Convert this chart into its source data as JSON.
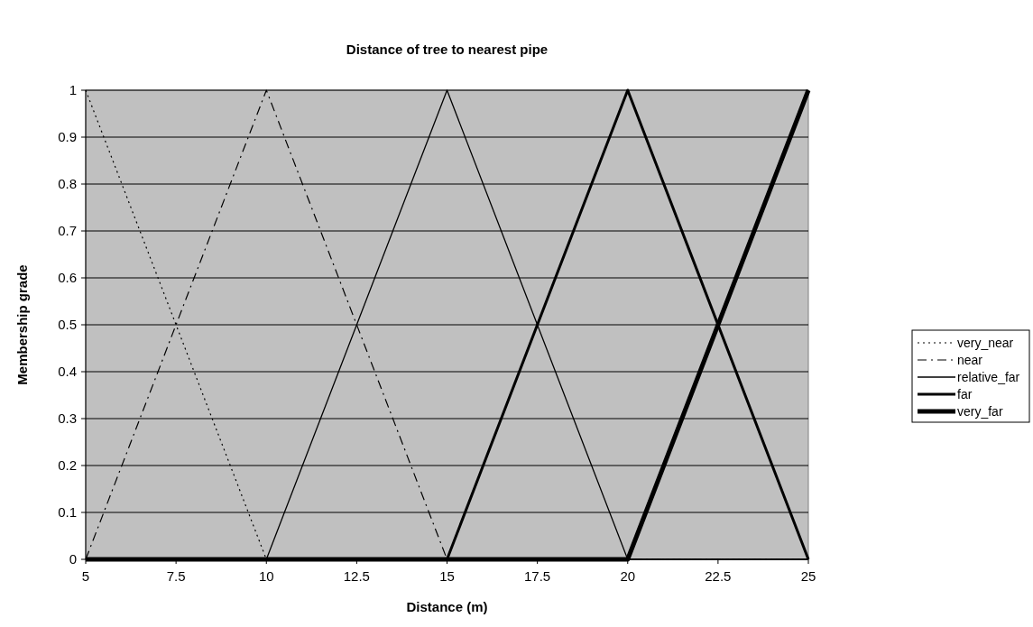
{
  "chart_data": {
    "type": "line",
    "title": "Distance of tree to nearest pipe",
    "xlabel": "Distance (m)",
    "ylabel": "Membership grade",
    "xlim": [
      5,
      25
    ],
    "xticks": [
      5,
      7.5,
      10,
      12.5,
      15,
      17.5,
      20,
      22.5,
      25
    ],
    "ylim": [
      0,
      1
    ],
    "yticks": [
      0,
      0.1,
      0.2,
      0.3,
      0.4,
      0.5,
      0.6,
      0.7,
      0.8,
      0.9,
      1
    ],
    "grid": "y",
    "legend": "right",
    "marker": "none",
    "series": [
      {
        "name": "very_near",
        "color": "#000000",
        "line_style": "dotted",
        "x": [
          5,
          10,
          15,
          20,
          25
        ],
        "values": [
          1,
          0,
          0,
          0,
          0
        ]
      },
      {
        "name": "near",
        "color": "#000000",
        "line_style": "dashdot",
        "x": [
          5,
          10,
          15,
          20,
          25
        ],
        "values": [
          0,
          1,
          0,
          0,
          0
        ]
      },
      {
        "name": "relative_far",
        "color": "#000000",
        "line_style": "solid",
        "x": [
          5,
          10,
          15,
          20,
          25
        ],
        "values": [
          0,
          0,
          1,
          0,
          0
        ]
      },
      {
        "name": "far",
        "color": "#000000",
        "line_style": "solid",
        "x": [
          5,
          10,
          15,
          20,
          25
        ],
        "values": [
          0,
          0,
          0,
          1,
          0
        ]
      },
      {
        "name": "very_far",
        "color": "#000000",
        "line_style": "solid",
        "x": [
          5,
          10,
          15,
          20,
          25
        ],
        "values": [
          0,
          0,
          0,
          0,
          1
        ]
      }
    ]
  }
}
